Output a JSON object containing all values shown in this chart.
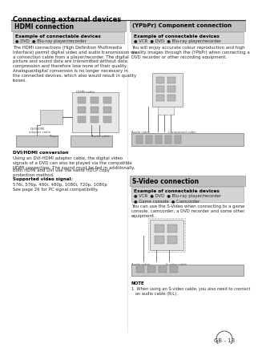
{
  "bg_color": "#f5f5f5",
  "title": "Connecting external devices",
  "page_number": "GB - 13",
  "hdmi_header": "HDMI connection",
  "hdmi_example_label": "Example of connectable devices",
  "hdmi_example_items": "● DVD  ● Blu-ray player/recorder",
  "hdmi_body": "The HDMI connections (High Definition Multimedia\nInterface) permit digital video and audio transmission via\na connection cable from a player/recorder. The digital\npicture and sound data are transmitted without data\ncompression and therefore lose none of their quality.\nAnalogue/digital conversion is no longer necessary in\nthe connected devices, which also would result in quality\nlosses.",
  "hdmi_sub1_header": "DVI/HDMI conversion",
  "hdmi_sub1_body": "Using an DVI-HDMI adapter cable, the digital video\nsignals of a DVD can also be played via the compatible\nHDMI connection. The sound must be fed in additionally.",
  "hdmi_sub2_body": "Both HDMI and DVI use the same HDCP copy\nprotection method.",
  "hdmi_sub3_header": "Supported video signal:",
  "hdmi_sub3_body": "576i, 576p, 480i, 480p, 1080i, 720p, 1080p\nSee page 26 for PC signal compatibility.",
  "ypbpr_header": "(YPbPr) Component connection",
  "ypbpr_example_label": "Example of connectable devices",
  "ypbpr_example_items": "● VCR  ● DVD  ● Blu-ray player/recorder",
  "ypbpr_body": "You will enjoy accurate colour reproduction and high\nquality images through the (YPbPr) when connecting a\nDVD recorder or other recording equipment.",
  "svideo_header": "S-Video connection",
  "svideo_example_label": "Example of connectable devices",
  "svideo_example_items_1": "● VCR  ● DVD  ● Blu-ray player/recorder",
  "svideo_example_items_2": "● Game console  ● Camcorder",
  "svideo_body": "You can use the S-Video when connecting to a game\nconsole, camcorder, a DVD recorder and some other\nequipment.",
  "note_header": "NOTE",
  "note_body": "1  When using an S-video cable, you also need to connect\n   an audio cable (R/L).",
  "header_bg": "#c8c8c8",
  "example_bg": "#d8d8d8",
  "section_border": "#aaaaaa",
  "text_color": "#1a1a1a",
  "label_color": "#000000",
  "body_color": "#2a2a2a"
}
